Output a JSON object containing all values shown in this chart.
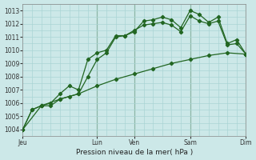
{
  "bg_color": "#cce8e8",
  "grid_color": "#aad4d4",
  "vline_color": "#447744",
  "line_color": "#226622",
  "marker_color": "#226622",
  "x_ticks_labels": [
    "Jeu",
    "",
    "Lun",
    "Ven",
    "",
    "Sam",
    "",
    "Dim"
  ],
  "x_ticks_pos": [
    0,
    2,
    4,
    6,
    7,
    9,
    10.5,
    12
  ],
  "xlabel_text": "Pression niveau de la mer( hPa )",
  "ylim": [
    1003.5,
    1013.5
  ],
  "yticks": [
    1004,
    1005,
    1006,
    1007,
    1008,
    1009,
    1010,
    1011,
    1012,
    1013
  ],
  "vlines": [
    4,
    6,
    9,
    12
  ],
  "series1_x": [
    0,
    0.5,
    1.0,
    1.5,
    2.0,
    2.5,
    3.0,
    3.5,
    4.0,
    4.5,
    5.0,
    5.5,
    6.0,
    6.5,
    7.0,
    7.5,
    8.0,
    8.5,
    9.0,
    9.5,
    10.0,
    10.5,
    11.0,
    11.5,
    12.0
  ],
  "series1_y": [
    1004.0,
    1005.5,
    1005.8,
    1006.0,
    1006.7,
    1007.3,
    1007.0,
    1009.3,
    1009.8,
    1010.0,
    1011.1,
    1011.1,
    1011.4,
    1012.2,
    1012.3,
    1012.5,
    1012.3,
    1011.7,
    1013.0,
    1012.7,
    1012.1,
    1012.5,
    1010.5,
    1010.8,
    1009.7
  ],
  "series2_x": [
    0,
    0.5,
    1.0,
    1.5,
    2.0,
    2.5,
    3.0,
    3.5,
    4.0,
    4.5,
    5.0,
    5.5,
    6.0,
    6.5,
    7.0,
    7.5,
    8.0,
    8.5,
    9.0,
    9.5,
    10.0,
    10.5,
    11.0,
    11.5,
    12.0
  ],
  "series2_y": [
    1004.0,
    1005.5,
    1005.8,
    1005.8,
    1006.3,
    1006.5,
    1006.7,
    1008.0,
    1009.3,
    1009.8,
    1011.0,
    1011.1,
    1011.5,
    1011.9,
    1012.0,
    1012.1,
    1011.9,
    1011.4,
    1012.6,
    1012.2,
    1012.0,
    1012.2,
    1010.4,
    1010.5,
    1009.7
  ],
  "series3_x": [
    0,
    1,
    2,
    3,
    4,
    5,
    6,
    7,
    8,
    9,
    10,
    11,
    12
  ],
  "series3_y": [
    1004.0,
    1005.8,
    1006.3,
    1006.7,
    1007.3,
    1007.8,
    1008.2,
    1008.6,
    1009.0,
    1009.3,
    1009.6,
    1009.8,
    1009.7
  ]
}
